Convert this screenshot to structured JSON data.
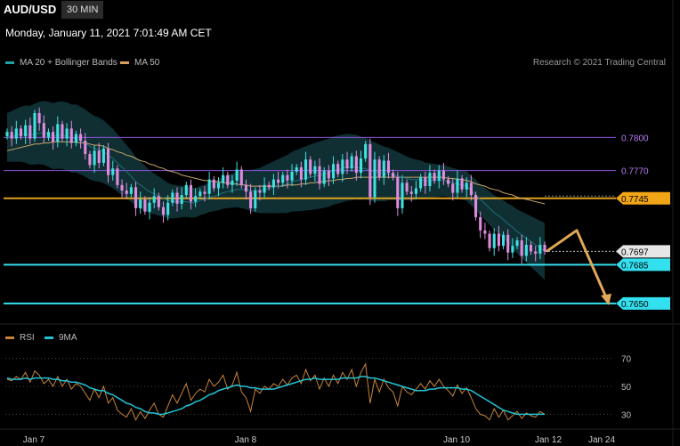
{
  "header": {
    "symbol": "AUD/USD",
    "timeframe": "30 MIN"
  },
  "date_line": "Monday, January 11, 2021 7:01:49 AM CET",
  "legend_main": [
    {
      "label": "MA 20 + Bollinger Bands",
      "color": "#1fa3a3"
    },
    {
      "label": "MA 50",
      "color": "#d9a05b"
    }
  ],
  "credit": "Research © 2021 Trading Central",
  "legend_rsi": [
    {
      "label": "RSI",
      "color": "#c8833a"
    },
    {
      "label": "9MA",
      "color": "#22c3d6"
    }
  ],
  "colors": {
    "up": "#3fe0e0",
    "down": "#e08be0",
    "bollinger": "#0f2f33",
    "ma20": "#22c3d6",
    "ma50": "#c8a36a",
    "forecast": "#e0a858"
  },
  "chart_data": [
    {
      "type": "candlestick",
      "ylim": [
        0.7633,
        0.7855
      ],
      "levels": [
        {
          "value": 0.78,
          "label": "0.7800",
          "color": "#8a52d6",
          "label_bg": "",
          "label_color": "#b47cf0"
        },
        {
          "value": 0.777,
          "label": "0.7770",
          "color": "#8a52d6",
          "label_bg": "",
          "label_color": "#b47cf0"
        },
        {
          "value": 0.7745,
          "label": "0.7745",
          "color": "#e0a020",
          "label_bg": "#f2a516",
          "label_color": "#000"
        },
        {
          "value": 0.7685,
          "label": "0.7685",
          "color": "#33e0f0",
          "label_bg": "#33e0f0",
          "label_color": "#000"
        },
        {
          "value": 0.765,
          "label": "0.7650",
          "color": "#33e0f0",
          "label_bg": "#33e0f0",
          "label_color": "#000"
        }
      ],
      "last_price": {
        "value": 0.7697,
        "label": "0.7697"
      },
      "forecast_path": [
        0.7697,
        0.7716,
        0.765
      ],
      "x_ticks": [
        "Jan 7",
        "Jan 8",
        "Jan 10",
        "Jan 12",
        "Jan 24"
      ],
      "closes": [
        0.7805,
        0.7799,
        0.7808,
        0.7801,
        0.7811,
        0.7799,
        0.7822,
        0.7813,
        0.78,
        0.7805,
        0.7796,
        0.7812,
        0.7799,
        0.7808,
        0.7795,
        0.7803,
        0.7797,
        0.7785,
        0.7775,
        0.7788,
        0.7777,
        0.779,
        0.7766,
        0.7772,
        0.7757,
        0.7752,
        0.7749,
        0.7755,
        0.7736,
        0.7744,
        0.7733,
        0.7741,
        0.7747,
        0.7737,
        0.773,
        0.7741,
        0.775,
        0.774,
        0.7748,
        0.7757,
        0.7742,
        0.7747,
        0.7751,
        0.7749,
        0.7762,
        0.7754,
        0.7759,
        0.7766,
        0.7757,
        0.7761,
        0.7771,
        0.7757,
        0.7751,
        0.7736,
        0.7752,
        0.775,
        0.7757,
        0.7755,
        0.7762,
        0.7759,
        0.7766,
        0.7761,
        0.7769,
        0.7773,
        0.7762,
        0.778,
        0.7767,
        0.7774,
        0.7758,
        0.777,
        0.7763,
        0.7776,
        0.7767,
        0.778,
        0.7772,
        0.7783,
        0.7768,
        0.7781,
        0.7794,
        0.7746,
        0.778,
        0.7764,
        0.7779,
        0.7768,
        0.7764,
        0.7736,
        0.7759,
        0.7751,
        0.7749,
        0.7754,
        0.7764,
        0.7756,
        0.7768,
        0.7761,
        0.777,
        0.7762,
        0.7758,
        0.775,
        0.7763,
        0.7753,
        0.7759,
        0.7748,
        0.7728,
        0.7716,
        0.7713,
        0.77,
        0.7713,
        0.7702,
        0.7712,
        0.7696,
        0.7702,
        0.7707,
        0.7693,
        0.7703,
        0.7697,
        0.7695,
        0.7703,
        0.7697
      ],
      "ma20": [
        0.78,
        0.7801,
        0.7802,
        0.7803,
        0.7803,
        0.7802,
        0.7803,
        0.7804,
        0.7804,
        0.7803,
        0.7801,
        0.7802,
        0.7802,
        0.7801,
        0.7799,
        0.7799,
        0.7797,
        0.7795,
        0.7792,
        0.779,
        0.7789,
        0.7787,
        0.7784,
        0.7781,
        0.7777,
        0.7773,
        0.7769,
        0.7765,
        0.776,
        0.7757,
        0.7754,
        0.7751,
        0.7749,
        0.7747,
        0.7745,
        0.7743,
        0.7742,
        0.7742,
        0.7742,
        0.7742,
        0.7741,
        0.7741,
        0.7743,
        0.7744,
        0.7746,
        0.7747,
        0.7748,
        0.775,
        0.7751,
        0.7752,
        0.7753,
        0.7753,
        0.7753,
        0.7752,
        0.7752,
        0.7752,
        0.7753,
        0.7754,
        0.7755,
        0.7756,
        0.7757,
        0.7758,
        0.776,
        0.7761,
        0.7762,
        0.7763,
        0.7764,
        0.7765,
        0.7766,
        0.7767,
        0.7768,
        0.777,
        0.7771,
        0.7772,
        0.7773,
        0.7773,
        0.7773,
        0.7772,
        0.7772,
        0.777,
        0.7769,
        0.7768,
        0.7767,
        0.7767,
        0.7766,
        0.7765,
        0.7764,
        0.7763,
        0.7762,
        0.7762,
        0.7762,
        0.7761,
        0.7761,
        0.7761,
        0.7761,
        0.7761,
        0.776,
        0.7759,
        0.7758,
        0.7757,
        0.7756,
        0.7752,
        0.7748,
        0.7744,
        0.774,
        0.7736,
        0.7732,
        0.7729,
        0.7726,
        0.7722,
        0.7719,
        0.7715,
        0.7712,
        0.7709,
        0.7706,
        0.7703,
        0.77,
        0.7697
      ],
      "ma50": [
        0.7788,
        0.7789,
        0.779,
        0.7791,
        0.7792,
        0.7793,
        0.7794,
        0.7794,
        0.7795,
        0.7795,
        0.7796,
        0.7796,
        0.7796,
        0.7796,
        0.7796,
        0.7796,
        0.7795,
        0.7795,
        0.7794,
        0.7793,
        0.7793,
        0.7792,
        0.779,
        0.7789,
        0.7787,
        0.7786,
        0.7784,
        0.7783,
        0.7781,
        0.7779,
        0.7778,
        0.7776,
        0.7775,
        0.7773,
        0.7772,
        0.777,
        0.7769,
        0.7768,
        0.7766,
        0.7765,
        0.7764,
        0.7763,
        0.7762,
        0.7761,
        0.7761,
        0.776,
        0.776,
        0.7759,
        0.7759,
        0.7758,
        0.7758,
        0.7757,
        0.7757,
        0.7756,
        0.7756,
        0.7756,
        0.7756,
        0.7756,
        0.7756,
        0.7756,
        0.7756,
        0.7757,
        0.7757,
        0.7757,
        0.7758,
        0.7758,
        0.7759,
        0.7759,
        0.776,
        0.776,
        0.7761,
        0.7761,
        0.7762,
        0.7762,
        0.7763,
        0.7763,
        0.7764,
        0.7764,
        0.7764,
        0.7764,
        0.7764,
        0.7764,
        0.7764,
        0.7764,
        0.7764,
        0.7764,
        0.7764,
        0.7764,
        0.7764,
        0.7764,
        0.7764,
        0.7764,
        0.7764,
        0.7764,
        0.7764,
        0.7764,
        0.7763,
        0.7763,
        0.7762,
        0.7762,
        0.7761,
        0.776,
        0.7758,
        0.7757,
        0.7756,
        0.7754,
        0.7753,
        0.7752,
        0.775,
        0.7749,
        0.7748,
        0.7746,
        0.7745,
        0.7744,
        0.7743,
        0.7742,
        0.7741,
        0.774
      ],
      "band_width": 0.0022
    },
    {
      "type": "line",
      "ylim": [
        22,
        78
      ],
      "y_ticks": [
        {
          "value": 70,
          "label": "70"
        },
        {
          "value": 50,
          "label": "50"
        },
        {
          "value": 30,
          "label": "30"
        }
      ],
      "rsi": [
        55,
        54,
        57,
        55,
        60,
        53,
        61,
        58,
        52,
        55,
        50,
        57,
        50,
        55,
        48,
        52,
        50,
        45,
        40,
        48,
        42,
        50,
        38,
        42,
        33,
        30,
        28,
        34,
        26,
        32,
        27,
        33,
        38,
        30,
        28,
        36,
        44,
        38,
        45,
        52,
        40,
        45,
        48,
        46,
        55,
        50,
        53,
        58,
        48,
        51,
        60,
        46,
        42,
        32,
        48,
        45,
        50,
        48,
        52,
        50,
        55,
        51,
        56,
        58,
        52,
        62,
        54,
        58,
        48,
        56,
        50,
        58,
        52,
        60,
        55,
        62,
        50,
        60,
        66,
        38,
        55,
        46,
        55,
        49,
        46,
        36,
        50,
        46,
        44,
        48,
        52,
        48,
        54,
        50,
        55,
        50,
        47,
        43,
        51,
        45,
        49,
        42,
        34,
        30,
        29,
        26,
        34,
        28,
        33,
        26,
        29,
        32,
        27,
        31,
        29,
        28,
        32,
        30
      ],
      "rsi_ma": [
        56,
        55,
        55,
        55,
        56,
        55,
        56,
        56,
        56,
        56,
        55,
        55,
        54,
        54,
        53,
        53,
        52,
        51,
        49,
        48,
        47,
        47,
        45,
        44,
        42,
        40,
        38,
        37,
        35,
        34,
        32,
        31,
        31,
        30,
        30,
        31,
        32,
        33,
        34,
        36,
        37,
        39,
        40,
        42,
        44,
        45,
        47,
        48,
        49,
        50,
        51,
        50,
        50,
        49,
        49,
        48,
        48,
        48,
        48,
        49,
        50,
        51,
        52,
        53,
        54,
        55,
        55,
        56,
        55,
        55,
        55,
        55,
        55,
        56,
        56,
        56,
        56,
        57,
        57,
        56,
        56,
        55,
        54,
        53,
        52,
        51,
        50,
        49,
        48,
        47,
        47,
        47,
        48,
        48,
        49,
        49,
        49,
        49,
        49,
        48,
        48,
        47,
        45,
        43,
        41,
        39,
        37,
        35,
        33,
        32,
        31,
        30,
        30,
        30,
        30,
        30,
        30,
        30
      ]
    }
  ]
}
